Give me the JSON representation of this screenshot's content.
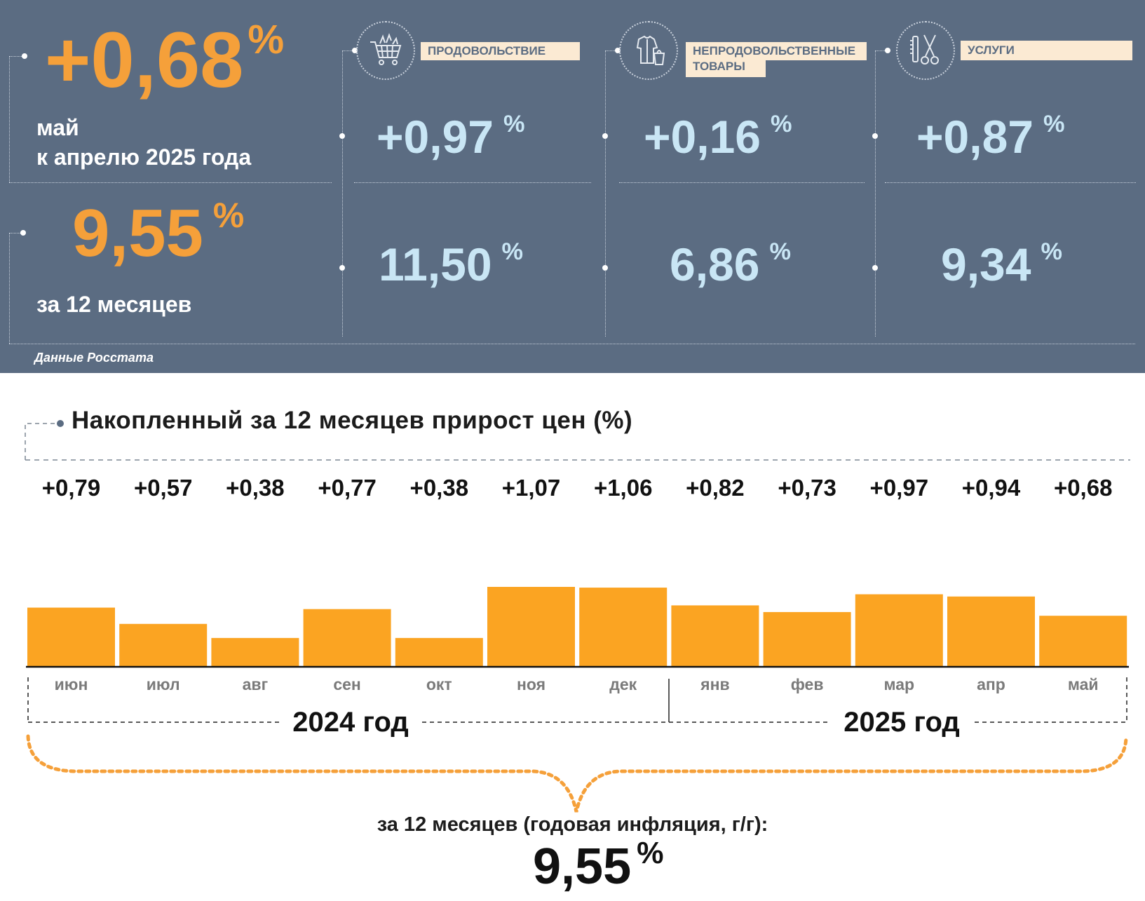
{
  "header": {
    "monthly_value": "+0,68",
    "monthly_unit": "%",
    "monthly_caption_line1": "май",
    "monthly_caption_line2": "к апрелю 2025 года",
    "annual_value": "9,55",
    "annual_unit": "%",
    "annual_caption": "за 12 месяцев",
    "source": "Данные Росстата"
  },
  "categories": [
    {
      "label": "ПРОДОВОЛЬСТВИЕ",
      "label_line2": "",
      "icon": "shopping-cart-icon",
      "monthly": "+0,97",
      "annual": "11,50",
      "unit": "%"
    },
    {
      "label": "НЕПРОДОВОЛЬСТВЕННЫЕ",
      "label_line2": "ТОВАРЫ",
      "icon": "clothing-bag-icon",
      "monthly": "+0,16",
      "annual": "6,86",
      "unit": "%"
    },
    {
      "label": "УСЛУГИ",
      "label_line2": "",
      "icon": "comb-scissors-icon",
      "monthly": "+0,87",
      "annual": "9,34",
      "unit": "%"
    }
  ],
  "colors": {
    "panel_bg": "#5b6c82",
    "accent_orange": "#f5a03a",
    "bar_orange": "#fba422",
    "light_blue": "#c9e6f5",
    "label_bg": "#fbead3"
  },
  "chart_data": {
    "type": "bar",
    "title": "Накопленный за 12 месяцев прирост цен (%)",
    "categories": [
      "июн",
      "июл",
      "авг",
      "сен",
      "окт",
      "ноя",
      "дек",
      "янв",
      "фев",
      "мар",
      "апр",
      "май"
    ],
    "values": [
      0.79,
      0.57,
      0.38,
      0.77,
      0.38,
      1.07,
      1.06,
      0.82,
      0.73,
      0.97,
      0.94,
      0.68
    ],
    "value_labels": [
      "+0,79",
      "+0,57",
      "+0,38",
      "+0,77",
      "+0,38",
      "+1,07",
      "+1,06",
      "+0,82",
      "+0,73",
      "+0,97",
      "+0,94",
      "+0,68"
    ],
    "year_groups": [
      {
        "label": "2024 год",
        "months": 7
      },
      {
        "label": "2025 год",
        "months": 5
      }
    ],
    "ylim": [
      0,
      1.07
    ],
    "grid": false,
    "summary_caption": "за 12 месяцев (годовая инфляция, г/г):",
    "summary_value": "9,55",
    "summary_unit": "%"
  }
}
